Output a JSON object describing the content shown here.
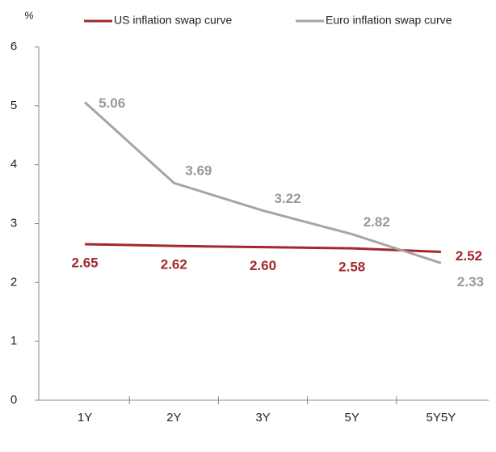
{
  "chart_data": {
    "type": "line",
    "y_label": "%",
    "categories": [
      "1Y",
      "2Y",
      "3Y",
      "5Y",
      "5Y5Y"
    ],
    "series": [
      {
        "name": "US inflation swap curve",
        "color": "#a3282c",
        "values": [
          2.65,
          2.62,
          2.6,
          2.58,
          2.52
        ],
        "value_labels": [
          "2.65",
          "2.62",
          "2.60",
          "2.58",
          "2.52"
        ]
      },
      {
        "name": "Euro inflation swap curve",
        "color": "#a6a6a6",
        "values": [
          5.06,
          3.69,
          3.22,
          2.82,
          2.33
        ],
        "value_labels": [
          "5.06",
          "3.69",
          "3.22",
          "2.82",
          "2.33"
        ]
      }
    ],
    "ylim": [
      0,
      6
    ],
    "yticks": [
      0,
      1,
      2,
      3,
      4,
      5,
      6
    ],
    "grid": false,
    "legend": "top"
  }
}
